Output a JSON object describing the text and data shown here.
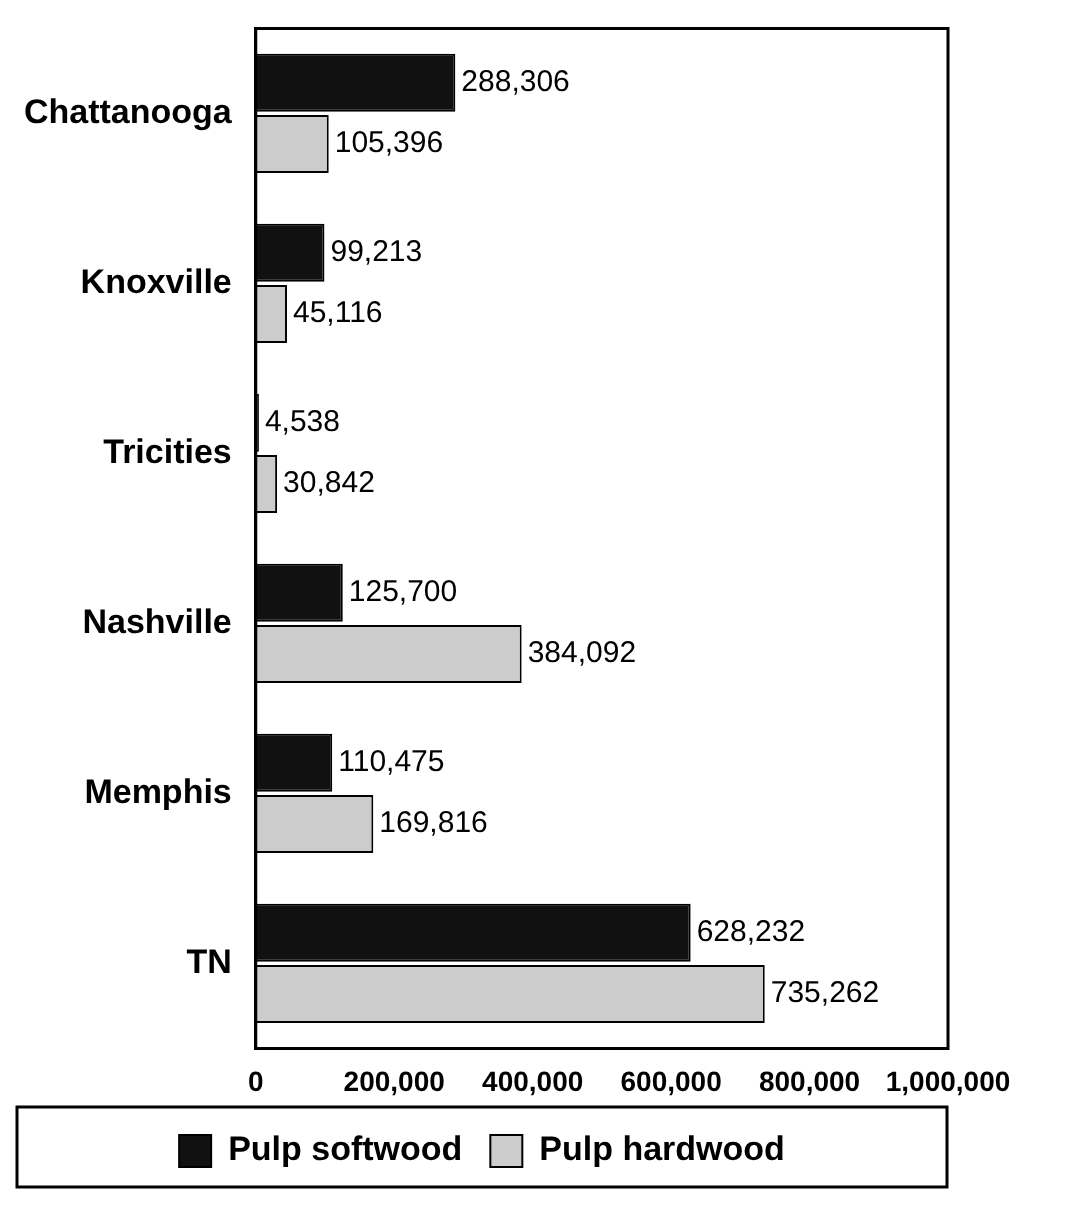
{
  "chart_data": {
    "type": "bar",
    "orientation": "horizontal",
    "categories": [
      "Chattanooga",
      "Knoxville",
      "Tricities",
      "Nashville",
      "Memphis",
      "TN"
    ],
    "series": [
      {
        "name": "Pulp softwood",
        "color": "#111111",
        "values": [
          288306,
          99213,
          4538,
          125700,
          110475,
          628232
        ],
        "value_labels": [
          "288,306",
          "99,213",
          "4,538",
          "125,700",
          "110,475",
          "628,232"
        ]
      },
      {
        "name": "Pulp hardwood",
        "color": "#cccccc",
        "values": [
          105396,
          45116,
          30842,
          384092,
          169816,
          735262
        ],
        "value_labels": [
          "105,396",
          "45,116",
          "30,842",
          "384,092",
          "169,816",
          "735,262"
        ]
      }
    ],
    "xlim": [
      0,
      1000000
    ],
    "xticks": [
      {
        "value": 0,
        "label": "0"
      },
      {
        "value": 200000,
        "label": "200,000"
      },
      {
        "value": 400000,
        "label": "400,000"
      },
      {
        "value": 600000,
        "label": "600,000"
      },
      {
        "value": 800000,
        "label": "800,000"
      },
      {
        "value": 1000000,
        "label": "1,000,000"
      }
    ],
    "grid": false,
    "legend": "bottom"
  }
}
